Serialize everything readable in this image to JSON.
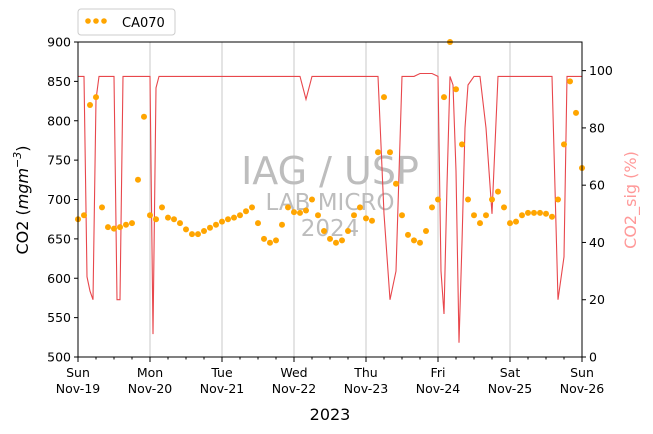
{
  "chart_data": {
    "type": "line",
    "legend": {
      "placement": "top-left",
      "label": "CA070",
      "marker_color": "#FFA500"
    },
    "watermark": {
      "line1": "IAG / USP",
      "line2": "LAB MICRO",
      "line3": "2024",
      "color": "#bdbdbd"
    },
    "xlabel": "2023",
    "x_ticks": [
      {
        "day": "Sun",
        "date": "Nov-19"
      },
      {
        "day": "Mon",
        "date": "Nov-20"
      },
      {
        "day": "Tue",
        "date": "Nov-21"
      },
      {
        "day": "Wed",
        "date": "Nov-22"
      },
      {
        "day": "Thu",
        "date": "Nov-23"
      },
      {
        "day": "Fri",
        "date": "Nov-24"
      },
      {
        "day": "Sat",
        "date": "Nov-25"
      },
      {
        "day": "Sun",
        "date": "Nov-26"
      }
    ],
    "xlim": [
      "2023-11-19",
      "2023-11-26"
    ],
    "x_grid": true,
    "y_left": {
      "label": "CO2 (mgm⁻³)",
      "label_main": "CO2 ",
      "label_unit": "mgm",
      "label_exp": "−3",
      "lim": [
        500,
        900
      ],
      "ticks": [
        500,
        550,
        600,
        650,
        700,
        750,
        800,
        850,
        900
      ],
      "color": "#000000"
    },
    "y_right": {
      "label": "CO2_sig (%)",
      "lim": [
        0,
        110
      ],
      "ticks": [
        0,
        20,
        40,
        60,
        80,
        100
      ],
      "color": "#FF8080"
    },
    "series": [
      {
        "name": "CA070",
        "axis": "left",
        "style": "scatter",
        "color": "#FFA500",
        "x_hours": [
          0,
          2,
          4,
          6,
          8,
          10,
          12,
          14,
          16,
          18,
          20,
          22,
          24,
          26,
          28,
          30,
          32,
          34,
          36,
          38,
          40,
          42,
          44,
          46,
          48,
          50,
          52,
          54,
          56,
          58,
          60,
          62,
          64,
          66,
          68,
          70,
          72,
          74,
          76,
          78,
          80,
          82,
          84,
          86,
          88,
          90,
          92,
          94,
          96,
          98,
          100,
          102,
          104,
          106,
          108,
          110,
          112,
          114,
          116,
          118,
          120,
          122,
          124,
          126,
          128,
          130,
          132,
          134,
          136,
          138,
          140,
          142,
          144,
          146,
          148,
          150,
          152,
          154,
          156,
          158,
          160,
          162,
          164,
          166,
          168
        ],
        "values": [
          675,
          680,
          820,
          830,
          690,
          665,
          663,
          665,
          668,
          670,
          725,
          805,
          680,
          675,
          690,
          677,
          675,
          670,
          662,
          656,
          656,
          660,
          664,
          668,
          672,
          675,
          677,
          680,
          685,
          690,
          670,
          650,
          645,
          648,
          668,
          690,
          684,
          683,
          686,
          700,
          680,
          660,
          650,
          645,
          648,
          660,
          680,
          690,
          676,
          673,
          760,
          830,
          760,
          720,
          680,
          655,
          648,
          645,
          660,
          690,
          700,
          830,
          900,
          840,
          770,
          700,
          680,
          670,
          680,
          700,
          710,
          690,
          670,
          672,
          680,
          683,
          683,
          683,
          682,
          678,
          700,
          770,
          850,
          810,
          740
        ]
      },
      {
        "name": "CO2_sig",
        "axis": "right",
        "style": "line",
        "color": "#E8474C",
        "x_hours": [
          0,
          2,
          3,
          4,
          5,
          6,
          7,
          8,
          9,
          10,
          11,
          12,
          13,
          14,
          15,
          16,
          17,
          18,
          20,
          22,
          24,
          25,
          26,
          27,
          28,
          29,
          30,
          32,
          34,
          36,
          38,
          40,
          42,
          44,
          46,
          48,
          50,
          52,
          54,
          56,
          58,
          60,
          62,
          64,
          66,
          68,
          70,
          72,
          74,
          76,
          78,
          80,
          82,
          84,
          86,
          88,
          90,
          92,
          94,
          96,
          98,
          100,
          102,
          104,
          106,
          108,
          110,
          112,
          114,
          116,
          118,
          120,
          121,
          122,
          123,
          124,
          125,
          126,
          127,
          128,
          129,
          130,
          132,
          134,
          136,
          138,
          140,
          142,
          144,
          146,
          148,
          150,
          152,
          154,
          156,
          158,
          160,
          162,
          163,
          164,
          165,
          166,
          167,
          168
        ],
        "values": [
          98,
          98,
          28,
          23,
          20,
          90,
          98,
          98,
          98,
          98,
          98,
          98,
          20,
          20,
          98,
          98,
          98,
          98,
          98,
          98,
          98,
          8,
          94,
          98,
          98,
          98,
          98,
          98,
          98,
          98,
          98,
          98,
          98,
          98,
          98,
          98,
          98,
          98,
          98,
          98,
          98,
          98,
          98,
          98,
          98,
          98,
          98,
          98,
          98,
          90,
          98,
          98,
          98,
          98,
          98,
          98,
          98,
          98,
          98,
          98,
          98,
          98,
          50,
          20,
          30,
          98,
          98,
          98,
          99,
          99,
          99,
          98,
          30,
          15,
          60,
          98,
          95,
          65,
          5,
          40,
          80,
          95,
          98,
          98,
          80,
          50,
          98,
          98,
          98,
          98,
          98,
          98,
          98,
          98,
          98,
          98,
          20,
          35,
          98,
          98,
          98,
          98,
          98,
          98
        ]
      }
    ]
  }
}
